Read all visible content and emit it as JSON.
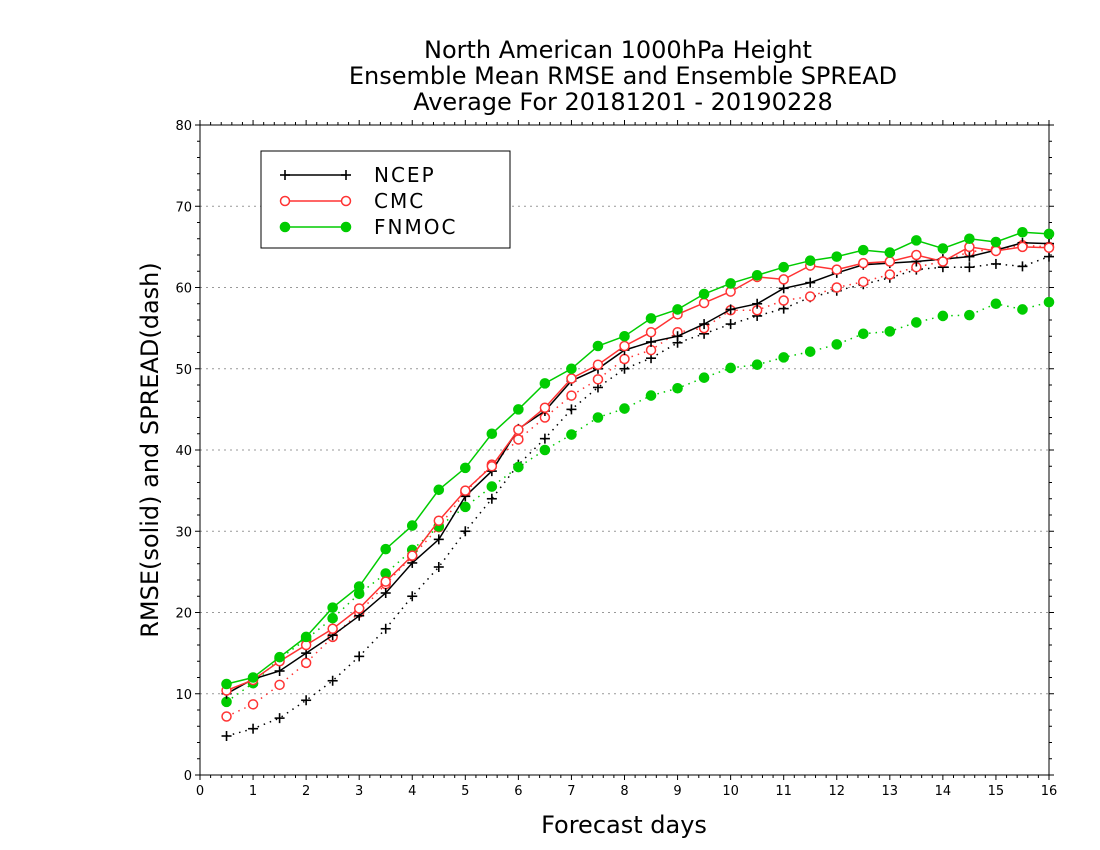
{
  "chart_data": {
    "type": "line",
    "title_lines": [
      "North American 1000hPa Height",
      "Ensemble Mean RMSE and Ensemble SPREAD",
      "Average For 20181201 - 20190228"
    ],
    "xlabel": "Forecast days",
    "ylabel": "RMSE(solid) and SPREAD(dash)",
    "xlim": [
      0,
      16
    ],
    "ylim": [
      0,
      80
    ],
    "xticks": [
      "0",
      "1",
      "2",
      "3",
      "4",
      "5",
      "6",
      "7",
      "8",
      "9",
      "10",
      "11",
      "12",
      "13",
      "14",
      "15",
      "16"
    ],
    "yticks": [
      "0",
      "10",
      "20",
      "30",
      "40",
      "50",
      "60",
      "70",
      "80"
    ],
    "grid": "horizontal dotted",
    "legend_position": "top-left",
    "x": [
      0.5,
      1,
      1.5,
      2,
      2.5,
      3,
      3.5,
      4,
      4.5,
      5,
      5.5,
      6,
      6.5,
      7,
      7.5,
      8,
      8.5,
      9,
      9.5,
      10,
      10.5,
      11,
      11.5,
      12,
      12.5,
      13,
      13.5,
      14,
      14.5,
      15,
      15.5,
      16
    ],
    "series": [
      {
        "name": "NCEP",
        "color": "#000000",
        "marker": "plus",
        "rmse": [
          10.0,
          11.8,
          12.8,
          15.0,
          17.2,
          19.6,
          22.4,
          26.1,
          29.0,
          34.3,
          37.4,
          42.6,
          44.8,
          48.5,
          50.0,
          52.3,
          53.3,
          54.0,
          55.5,
          57.3,
          58.0,
          59.9,
          60.6,
          61.8,
          62.8,
          63.0,
          63.2,
          63.5,
          63.8,
          64.6,
          65.5,
          65.4
        ],
        "spread": [
          4.8,
          5.7,
          7.0,
          9.2,
          11.6,
          14.6,
          18.0,
          22.0,
          25.6,
          30.0,
          34.0,
          38.2,
          41.4,
          45.0,
          47.7,
          50.0,
          51.3,
          53.2,
          54.3,
          55.5,
          56.5,
          57.4,
          58.8,
          59.6,
          60.4,
          61.2,
          62.2,
          62.5,
          62.5,
          62.9,
          62.6,
          63.8
        ]
      },
      {
        "name": "CMC",
        "color": "#ff3333",
        "marker": "open-circle",
        "rmse": [
          10.4,
          11.7,
          14.0,
          16.0,
          18.0,
          20.5,
          23.8,
          27.0,
          31.3,
          35.0,
          38.0,
          42.5,
          45.2,
          48.8,
          50.5,
          52.8,
          54.5,
          56.7,
          58.1,
          59.5,
          61.3,
          61.0,
          62.7,
          62.2,
          63.0,
          63.2,
          64.0,
          63.2,
          65.0,
          64.5,
          65.0,
          64.9
        ],
        "spread": [
          7.2,
          8.7,
          11.1,
          13.8,
          17.0,
          20.0,
          23.5,
          26.9,
          30.5,
          34.8,
          38.2,
          41.3,
          44.0,
          46.7,
          48.7,
          51.2,
          52.3,
          54.5,
          55.0,
          57.2,
          57.2,
          58.4,
          58.9,
          60.0,
          60.7,
          61.6,
          62.5,
          63.2,
          64.4,
          64.7,
          65.2,
          65.0
        ]
      },
      {
        "name": "FNMOC",
        "color": "#00cc00",
        "marker": "filled-circle",
        "rmse": [
          11.2,
          12.0,
          14.5,
          17.0,
          20.6,
          23.2,
          27.8,
          30.7,
          35.1,
          37.8,
          42.0,
          45.0,
          48.2,
          50.0,
          52.8,
          54.0,
          56.2,
          57.3,
          59.2,
          60.5,
          61.5,
          62.5,
          63.3,
          63.8,
          64.6,
          64.3,
          65.8,
          64.8,
          66.0,
          65.6,
          66.8,
          66.6
        ],
        "spread": [
          9.0,
          11.3,
          14.3,
          16.7,
          19.3,
          22.3,
          24.8,
          27.7,
          30.6,
          33.0,
          35.5,
          37.9,
          40.0,
          41.9,
          44.0,
          45.1,
          46.7,
          47.6,
          48.9,
          50.1,
          50.5,
          51.4,
          52.1,
          53.0,
          54.3,
          54.6,
          55.7,
          56.5,
          56.6,
          58.0,
          57.3,
          58.2
        ]
      }
    ]
  }
}
